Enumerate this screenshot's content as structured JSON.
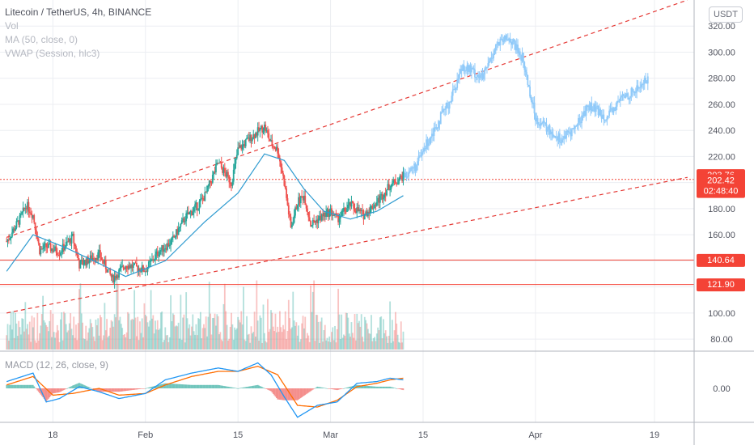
{
  "legend": {
    "title": "Litecoin / TetherUS, 4h, BINANCE",
    "vol": "Vol",
    "ma": "MA (50, close, 0)",
    "vwap": "VWAP (Session, hlc3)",
    "macd": "MACD (12, 26, close, 9)"
  },
  "currency_button": "USDT",
  "colors": {
    "up": "#26a69a",
    "down": "#ef5350",
    "ma": "#2f9bd0",
    "macd": "#2196f3",
    "signal": "#ff6d00",
    "trend": "#e53935",
    "level": "#f44336",
    "projection": "#90caf9",
    "grid": "#eceef2"
  },
  "chart_data": [
    {
      "type": "candlestick",
      "title": "Litecoin / TetherUS, 4h, BINANCE",
      "x_ticks": [
        "18",
        "Feb",
        "15",
        "Mar",
        "15",
        "Apr",
        "19"
      ],
      "y_ticks": [
        "80.00",
        "100.00",
        "120.00",
        "140.00",
        "160.00",
        "180.00",
        "200.00",
        "220.00",
        "240.00",
        "260.00",
        "280.00",
        "300.00",
        "320.00"
      ],
      "ylim": [
        72,
        340
      ],
      "current_price": "202.42",
      "countdown": "02:48:40",
      "price_labels": [
        "203.76",
        "140.64",
        "121.90"
      ],
      "horizontal_levels": [
        202.42,
        140.64,
        121.9
      ],
      "trendlines": [
        {
          "style": "dashed",
          "from": [
            "2021-01-11",
            158
          ],
          "to": [
            "2021-04-24",
            340
          ]
        },
        {
          "style": "dashed",
          "from": [
            "2021-01-11",
            100
          ],
          "to": [
            "2021-04-24",
            204
          ]
        }
      ],
      "price_path": [
        [
          "2021-01-11",
          155
        ],
        [
          "2021-01-13",
          172
        ],
        [
          "2021-01-14",
          183
        ],
        [
          "2021-01-15",
          175
        ],
        [
          "2021-01-16",
          148
        ],
        [
          "2021-01-17",
          151
        ],
        [
          "2021-01-19",
          147
        ],
        [
          "2021-01-21",
          158
        ],
        [
          "2021-01-22",
          137
        ],
        [
          "2021-01-25",
          145
        ],
        [
          "2021-01-27",
          126
        ],
        [
          "2021-01-29",
          137
        ],
        [
          "2021-02-01",
          133
        ],
        [
          "2021-02-03",
          147
        ],
        [
          "2021-02-05",
          155
        ],
        [
          "2021-02-07",
          173
        ],
        [
          "2021-02-09",
          183
        ],
        [
          "2021-02-10",
          190
        ],
        [
          "2021-02-12",
          215
        ],
        [
          "2021-02-14",
          200
        ],
        [
          "2021-02-15",
          225
        ],
        [
          "2021-02-17",
          235
        ],
        [
          "2021-02-19",
          243
        ],
        [
          "2021-02-20",
          230
        ],
        [
          "2021-02-21",
          225
        ],
        [
          "2021-02-22",
          200
        ],
        [
          "2021-02-23",
          165
        ],
        [
          "2021-02-24",
          185
        ],
        [
          "2021-02-25",
          190
        ],
        [
          "2021-02-26",
          168
        ],
        [
          "2021-02-28",
          175
        ],
        [
          "2021-03-01",
          178
        ],
        [
          "2021-03-02",
          172
        ],
        [
          "2021-03-04",
          183
        ],
        [
          "2021-03-06",
          175
        ],
        [
          "2021-03-08",
          185
        ],
        [
          "2021-03-10",
          198
        ],
        [
          "2021-03-12",
          205
        ]
      ],
      "ma50_path": [
        [
          "2021-01-11",
          132
        ],
        [
          "2021-01-15",
          160
        ],
        [
          "2021-01-20",
          150
        ],
        [
          "2021-01-25",
          138
        ],
        [
          "2021-01-29",
          128
        ],
        [
          "2021-02-04",
          140
        ],
        [
          "2021-02-10",
          170
        ],
        [
          "2021-02-15",
          192
        ],
        [
          "2021-02-19",
          222
        ],
        [
          "2021-02-22",
          217
        ],
        [
          "2021-02-25",
          195
        ],
        [
          "2021-02-28",
          178
        ],
        [
          "2021-03-04",
          172
        ],
        [
          "2021-03-08",
          178
        ],
        [
          "2021-03-12",
          190
        ]
      ],
      "projection_path": [
        [
          "2021-03-12",
          205
        ],
        [
          "2021-03-14",
          213
        ],
        [
          "2021-03-16",
          235
        ],
        [
          "2021-03-19",
          262
        ],
        [
          "2021-03-21",
          290
        ],
        [
          "2021-03-24",
          280
        ],
        [
          "2021-03-26",
          305
        ],
        [
          "2021-03-28",
          311
        ],
        [
          "2021-03-30",
          296
        ],
        [
          "2021-04-01",
          250
        ],
        [
          "2021-04-03",
          240
        ],
        [
          "2021-04-05",
          233
        ],
        [
          "2021-04-07",
          242
        ],
        [
          "2021-04-09",
          259
        ],
        [
          "2021-04-12",
          250
        ],
        [
          "2021-04-14",
          265
        ],
        [
          "2021-04-16",
          270
        ],
        [
          "2021-04-18",
          280
        ]
      ]
    },
    {
      "type": "bar",
      "title": "Vol",
      "note": "volume histogram, unitless"
    },
    {
      "type": "line",
      "title": "MACD (12, 26, close, 9)",
      "y_ticks": [
        "0.00"
      ],
      "ylim": [
        -20,
        20
      ],
      "macd_path": [
        [
          "2021-01-11",
          4
        ],
        [
          "2021-01-15",
          9
        ],
        [
          "2021-01-17",
          -8
        ],
        [
          "2021-01-19",
          -6
        ],
        [
          "2021-01-22",
          1
        ],
        [
          "2021-01-25",
          -2
        ],
        [
          "2021-01-28",
          -6
        ],
        [
          "2021-02-01",
          -3
        ],
        [
          "2021-02-04",
          5
        ],
        [
          "2021-02-08",
          9
        ],
        [
          "2021-02-12",
          12
        ],
        [
          "2021-02-15",
          10
        ],
        [
          "2021-02-18",
          15
        ],
        [
          "2021-02-20",
          8
        ],
        [
          "2021-02-22",
          -5
        ],
        [
          "2021-02-24",
          -17
        ],
        [
          "2021-02-27",
          -10
        ],
        [
          "2021-03-02",
          -8
        ],
        [
          "2021-03-05",
          3
        ],
        [
          "2021-03-08",
          4
        ],
        [
          "2021-03-10",
          6
        ],
        [
          "2021-03-12",
          5
        ]
      ],
      "signal_path": [
        [
          "2021-01-11",
          2
        ],
        [
          "2021-01-15",
          7
        ],
        [
          "2021-01-18",
          -4
        ],
        [
          "2021-01-21",
          -3
        ],
        [
          "2021-01-25",
          0
        ],
        [
          "2021-01-28",
          -4
        ],
        [
          "2021-02-01",
          -3
        ],
        [
          "2021-02-04",
          2
        ],
        [
          "2021-02-08",
          7
        ],
        [
          "2021-02-12",
          10
        ],
        [
          "2021-02-15",
          10
        ],
        [
          "2021-02-18",
          13
        ],
        [
          "2021-02-21",
          8
        ],
        [
          "2021-02-24",
          -10
        ],
        [
          "2021-02-27",
          -11
        ],
        [
          "2021-03-02",
          -7
        ],
        [
          "2021-03-05",
          1
        ],
        [
          "2021-03-08",
          3
        ],
        [
          "2021-03-10",
          5
        ],
        [
          "2021-03-12",
          6
        ]
      ]
    }
  ]
}
